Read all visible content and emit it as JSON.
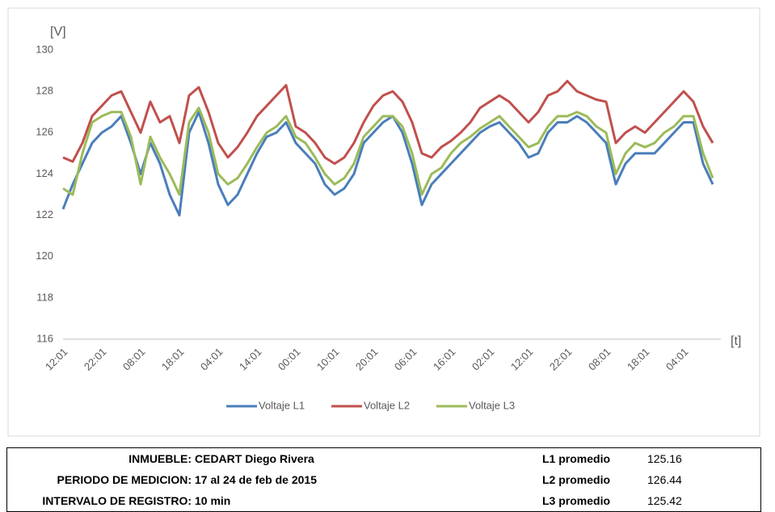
{
  "chart_data": {
    "type": "line",
    "y_label": "[V]",
    "x_label": "[t]",
    "categories": [
      "12:01",
      null,
      null,
      null,
      "22:01",
      null,
      null,
      null,
      "08:01",
      null,
      null,
      null,
      "18:01",
      null,
      null,
      null,
      "04:01",
      null,
      null,
      null,
      "14:01",
      null,
      null,
      null,
      "00:01",
      null,
      null,
      null,
      "10:01",
      null,
      null,
      null,
      "20:01",
      null,
      null,
      null,
      "06:01",
      null,
      null,
      null,
      "16:01",
      null,
      null,
      null,
      "02:01",
      null,
      null,
      null,
      "12:01",
      null,
      null,
      null,
      "22:01",
      null,
      null,
      null,
      "08:01",
      null,
      null,
      null,
      "18:01",
      null,
      null,
      null,
      "04:01",
      null,
      null,
      null
    ],
    "ylim": [
      116,
      130
    ],
    "yticks": [
      116,
      118,
      120,
      122,
      124,
      126,
      128,
      130
    ],
    "grid": false,
    "legend": "bottom",
    "series": [
      {
        "name": "Voltaje L1",
        "color": "#4a7ebb",
        "values": [
          122.3,
          123.5,
          124.5,
          125.5,
          126.0,
          126.3,
          126.8,
          125.5,
          124.0,
          125.5,
          124.5,
          123.0,
          122.0,
          126.0,
          127.0,
          125.5,
          123.5,
          122.5,
          123.0,
          124.0,
          125.0,
          125.8,
          126.0,
          126.5,
          125.5,
          125.0,
          124.5,
          123.5,
          123.0,
          123.3,
          124.0,
          125.5,
          126.0,
          126.5,
          126.8,
          126.0,
          124.5,
          122.5,
          123.5,
          124.0,
          124.5,
          125.0,
          125.5,
          126.0,
          126.3,
          126.5,
          126.0,
          125.5,
          124.8,
          125.0,
          126.0,
          126.5,
          126.5,
          126.8,
          126.5,
          126.0,
          125.5,
          123.5,
          124.5,
          125.0,
          125.0,
          125.0,
          125.5,
          126.0,
          126.5,
          126.5,
          124.5,
          123.5
        ]
      },
      {
        "name": "Voltaje L2",
        "color": "#c0504d",
        "values": [
          124.8,
          124.6,
          125.5,
          126.8,
          127.3,
          127.8,
          128.0,
          127.0,
          126.0,
          127.5,
          126.5,
          126.8,
          125.5,
          127.8,
          128.2,
          127.0,
          125.5,
          124.8,
          125.3,
          126.0,
          126.8,
          127.3,
          127.8,
          128.3,
          126.3,
          126.0,
          125.5,
          124.8,
          124.5,
          124.8,
          125.5,
          126.5,
          127.3,
          127.8,
          128.0,
          127.5,
          126.5,
          125.0,
          124.8,
          125.3,
          125.6,
          126.0,
          126.5,
          127.2,
          127.5,
          127.8,
          127.5,
          127.0,
          126.5,
          127.0,
          127.8,
          128.0,
          128.5,
          128.0,
          127.8,
          127.6,
          127.5,
          125.5,
          126.0,
          126.3,
          126.0,
          126.5,
          127.0,
          127.5,
          128.0,
          127.5,
          126.3,
          125.5
        ]
      },
      {
        "name": "Voltaje L3",
        "color": "#9bbb59",
        "values": [
          123.3,
          123.0,
          125.0,
          126.5,
          126.8,
          127.0,
          127.0,
          125.8,
          123.5,
          125.8,
          124.8,
          124.0,
          123.0,
          126.5,
          127.2,
          126.0,
          124.0,
          123.5,
          123.8,
          124.5,
          125.3,
          126.0,
          126.3,
          126.8,
          125.8,
          125.5,
          124.8,
          124.0,
          123.5,
          123.8,
          124.5,
          125.8,
          126.3,
          126.8,
          126.8,
          126.3,
          125.0,
          123.0,
          124.0,
          124.3,
          125.0,
          125.5,
          125.8,
          126.2,
          126.5,
          126.8,
          126.3,
          125.8,
          125.3,
          125.5,
          126.3,
          126.8,
          126.8,
          127.0,
          126.8,
          126.3,
          126.0,
          124.0,
          125.0,
          125.5,
          125.3,
          125.5,
          126.0,
          126.3,
          126.8,
          126.8,
          125.0,
          123.8
        ]
      }
    ]
  },
  "table": {
    "rows": [
      [
        "INMUEBLE:",
        "CEDART Diego Rivera",
        "L1 promedio",
        125.16
      ],
      [
        "PERIODO DE MEDICION:",
        "17 al 24 de feb de 2015",
        "L2 promedio",
        126.44
      ],
      [
        "INTERVALO DE REGISTRO:",
        "10 min",
        "L3 promedio",
        125.42
      ]
    ]
  }
}
